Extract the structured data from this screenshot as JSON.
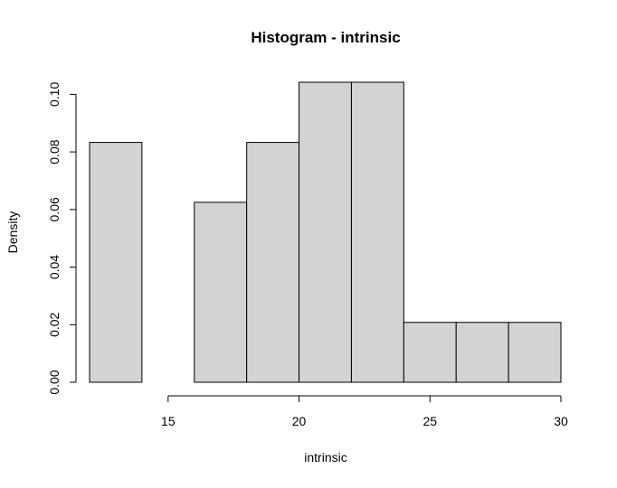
{
  "chart_data": {
    "type": "histogram",
    "title": "Histogram - intrinsic",
    "xlabel": "intrinsic",
    "ylabel": "Density",
    "bins": [
      {
        "start": 12,
        "end": 14,
        "density": 0.0833
      },
      {
        "start": 14,
        "end": 16,
        "density": 0.0
      },
      {
        "start": 16,
        "end": 18,
        "density": 0.0625
      },
      {
        "start": 18,
        "end": 20,
        "density": 0.0833
      },
      {
        "start": 20,
        "end": 22,
        "density": 0.1042
      },
      {
        "start": 22,
        "end": 24,
        "density": 0.1042
      },
      {
        "start": 24,
        "end": 26,
        "density": 0.0208
      },
      {
        "start": 26,
        "end": 28,
        "density": 0.0208
      },
      {
        "start": 28,
        "end": 30,
        "density": 0.0208
      }
    ],
    "x_ticks": [
      {
        "value": 15,
        "label": "15"
      },
      {
        "value": 20,
        "label": "20"
      },
      {
        "value": 25,
        "label": "25"
      },
      {
        "value": 30,
        "label": "30"
      }
    ],
    "y_ticks": [
      {
        "value": 0,
        "label": "0.00"
      },
      {
        "value": 0.02,
        "label": "0.02"
      },
      {
        "value": 0.04,
        "label": "0.04"
      },
      {
        "value": 0.06,
        "label": "0.06"
      },
      {
        "value": 0.08,
        "label": "0.08"
      },
      {
        "value": 0.1,
        "label": "0.10"
      }
    ],
    "bar_fill": "#d3d3d3",
    "bar_stroke": "#000000",
    "grid": false,
    "legend": "none"
  }
}
